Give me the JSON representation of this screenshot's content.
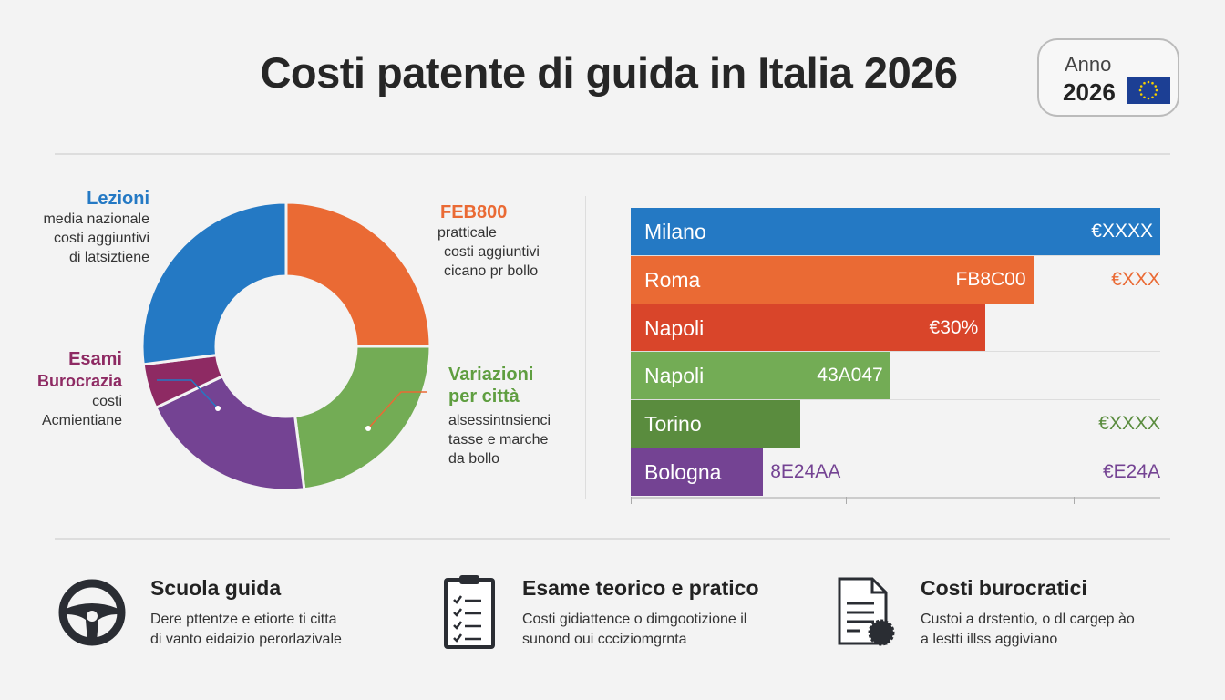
{
  "header": {
    "title": "Costi patente di guida in Italia 2026",
    "badge_label": "Anno",
    "badge_year": "2026",
    "flag_icon": "eu-flag-icon"
  },
  "colors": {
    "blue": "#2479c4",
    "orange": "#ea6a34",
    "red": "#d9452a",
    "green": "#73ac55",
    "dark_green": "#5a8c3e",
    "purple": "#744393",
    "magenta": "#8e2a63"
  },
  "donut_labels": {
    "lezioni": {
      "title": "Lezioni",
      "lines": [
        "media nazionale",
        "costi aggiuntivi",
        "di latsiztiene"
      ]
    },
    "feb": {
      "title": "FEB800",
      "lines": [
        "pratticale",
        "costi aggiuntivi",
        "cicano pr bollo"
      ]
    },
    "esami": {
      "title": "Esami",
      "title2": "Burocrazia",
      "lines": [
        "costi",
        "Acmientiane"
      ]
    },
    "variazioni": {
      "title": "Variazioni",
      "title2": "per città",
      "lines": [
        "alsessintnsienci",
        "tasse e marche",
        "da bollo"
      ]
    }
  },
  "chart_data": [
    {
      "type": "pie",
      "donut": true,
      "unit": "percent (estimated)",
      "slices": [
        {
          "label": "FEB800",
          "value": 25,
          "color": "#ea6a34"
        },
        {
          "label": "Variazioni per città",
          "value": 23,
          "color": "#73ac55"
        },
        {
          "label": "",
          "value": 20,
          "color": "#744393"
        },
        {
          "label": "Esami Burocrazia",
          "value": 5,
          "color": "#8e2a63"
        },
        {
          "label": "Lezioni",
          "value": 27,
          "color": "#2479c4"
        }
      ]
    },
    {
      "type": "bar",
      "orientation": "horizontal",
      "unit": "percent of max (estimated)",
      "categories": [
        "Milano",
        "Roma",
        "Napoli",
        "Napoli",
        "Torino",
        "Bologna"
      ],
      "values": [
        100,
        76,
        67,
        49,
        32,
        25
      ],
      "inner_labels": [
        "€XXXX",
        "FB8C00",
        "€30%",
        "43A047",
        "",
        "8E24AA"
      ],
      "right_labels": [
        "",
        "€XXX",
        "",
        "",
        "€XXXX",
        "€E24A"
      ],
      "colors": [
        "#2479c4",
        "#ea6a34",
        "#d9452a",
        "#73ac55",
        "#5a8c3e",
        "#744393"
      ]
    }
  ],
  "features": [
    {
      "icon": "steering-wheel-icon",
      "title": "Scuola guida",
      "lines": [
        "Dere pttentze e etiorte ti citta",
        "di vanto eidaizio perorlazivale"
      ]
    },
    {
      "icon": "clipboard-checklist-icon",
      "title": "Esame teorico e pratico",
      "lines": [
        "Costi gidiattence o dimgootizione il",
        "sunond oui ccciziomgrnta"
      ]
    },
    {
      "icon": "document-certificate-icon",
      "title": "Costi burocratici",
      "lines": [
        "Custoi a drstentio, o dl cargep ào",
        "a lestti illss aggiviano"
      ]
    }
  ]
}
